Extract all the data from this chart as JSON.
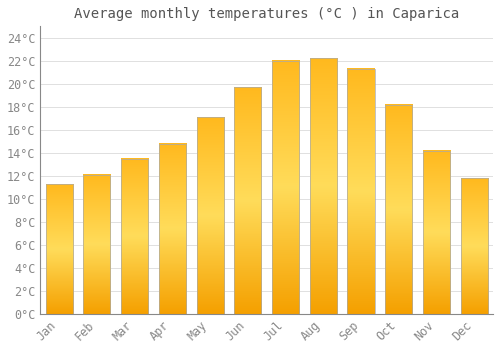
{
  "title": "Average monthly temperatures (°C ) in Caparica",
  "months": [
    "Jan",
    "Feb",
    "Mar",
    "Apr",
    "May",
    "Jun",
    "Jul",
    "Aug",
    "Sep",
    "Oct",
    "Nov",
    "Dec"
  ],
  "temperatures": [
    11.3,
    12.1,
    13.5,
    14.8,
    17.1,
    19.7,
    22.0,
    22.2,
    21.3,
    18.2,
    14.2,
    11.8
  ],
  "bar_color_mid": "#FFA500",
  "bar_color_light": "#FFD060",
  "bar_edge_color": "#AAAAAA",
  "background_color": "#FFFFFF",
  "grid_color": "#E0E0E0",
  "text_color": "#888888",
  "ylim": [
    0,
    25
  ],
  "ytick_step": 2,
  "title_fontsize": 10,
  "tick_fontsize": 8.5,
  "font_family": "monospace"
}
